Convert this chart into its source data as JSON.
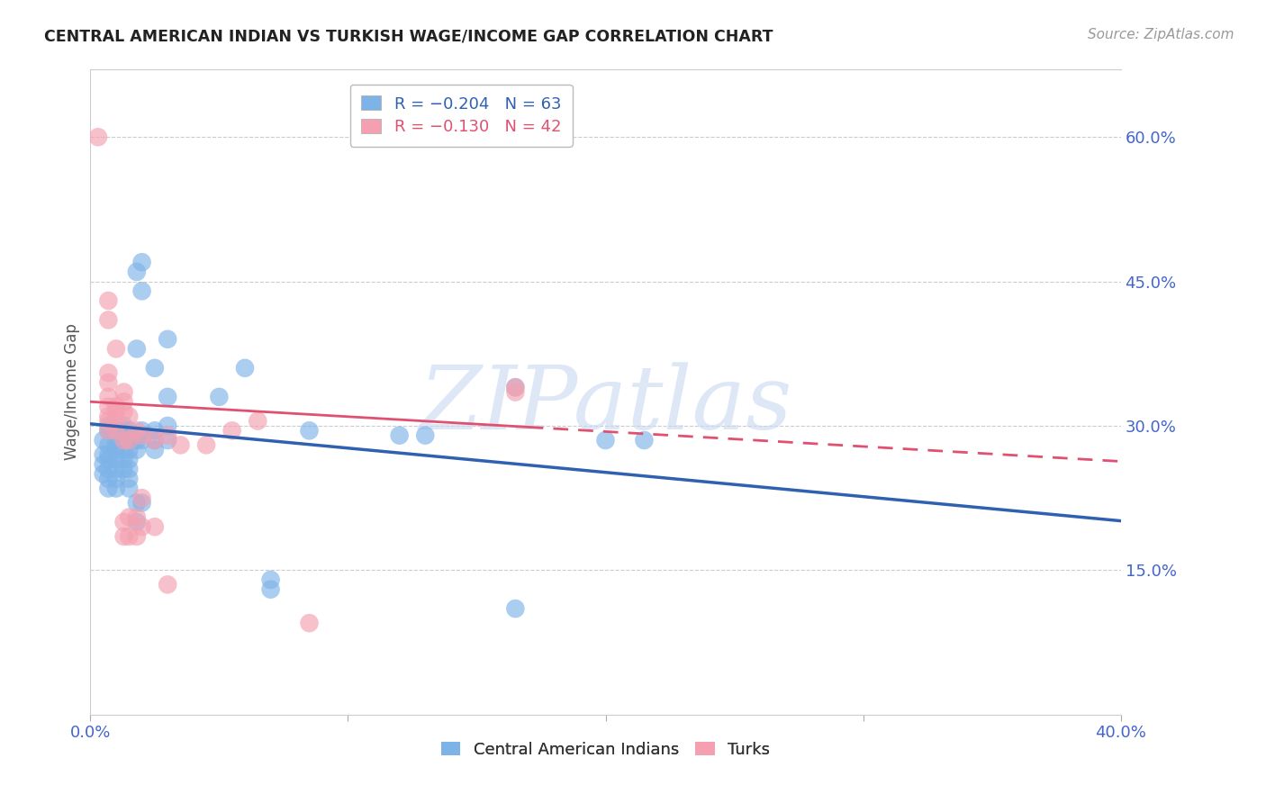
{
  "title": "CENTRAL AMERICAN INDIAN VS TURKISH WAGE/INCOME GAP CORRELATION CHART",
  "source": "Source: ZipAtlas.com",
  "ylabel": "Wage/Income Gap",
  "x_min": 0.0,
  "x_max": 0.4,
  "y_min": 0.0,
  "y_max": 0.67,
  "right_yticks": [
    0.15,
    0.3,
    0.45,
    0.6
  ],
  "right_ytick_labels": [
    "15.0%",
    "30.0%",
    "45.0%",
    "60.0%"
  ],
  "x_ticks": [
    0.0,
    0.1,
    0.2,
    0.3,
    0.4
  ],
  "x_tick_labels": [
    "0.0%",
    "",
    "",
    "",
    "40.0%"
  ],
  "legend_blue": "R = −0.204   N = 63",
  "legend_pink": "R = −0.130   N = 42",
  "blue_color": "#7EB3E8",
  "pink_color": "#F4A0B0",
  "blue_line_color": "#3060B0",
  "pink_line_color": "#E05070",
  "watermark": "ZIPatlas",
  "watermark_color": "#C8D8F0",
  "blue_regression": [
    0.302,
    -0.252
  ],
  "pink_regression": [
    0.325,
    -0.155
  ],
  "blue_scatter": [
    [
      0.005,
      0.27
    ],
    [
      0.005,
      0.26
    ],
    [
      0.005,
      0.25
    ],
    [
      0.005,
      0.285
    ],
    [
      0.007,
      0.3
    ],
    [
      0.007,
      0.295
    ],
    [
      0.007,
      0.28
    ],
    [
      0.007,
      0.27
    ],
    [
      0.007,
      0.265
    ],
    [
      0.007,
      0.255
    ],
    [
      0.007,
      0.245
    ],
    [
      0.007,
      0.235
    ],
    [
      0.01,
      0.295
    ],
    [
      0.01,
      0.285
    ],
    [
      0.01,
      0.28
    ],
    [
      0.01,
      0.275
    ],
    [
      0.01,
      0.265
    ],
    [
      0.01,
      0.255
    ],
    [
      0.01,
      0.245
    ],
    [
      0.01,
      0.235
    ],
    [
      0.013,
      0.3
    ],
    [
      0.013,
      0.295
    ],
    [
      0.013,
      0.285
    ],
    [
      0.013,
      0.275
    ],
    [
      0.013,
      0.265
    ],
    [
      0.013,
      0.255
    ],
    [
      0.015,
      0.295
    ],
    [
      0.015,
      0.285
    ],
    [
      0.015,
      0.275
    ],
    [
      0.015,
      0.265
    ],
    [
      0.015,
      0.255
    ],
    [
      0.015,
      0.245
    ],
    [
      0.015,
      0.235
    ],
    [
      0.018,
      0.46
    ],
    [
      0.018,
      0.38
    ],
    [
      0.018,
      0.285
    ],
    [
      0.018,
      0.275
    ],
    [
      0.018,
      0.22
    ],
    [
      0.018,
      0.2
    ],
    [
      0.02,
      0.47
    ],
    [
      0.02,
      0.44
    ],
    [
      0.02,
      0.295
    ],
    [
      0.02,
      0.285
    ],
    [
      0.02,
      0.22
    ],
    [
      0.025,
      0.36
    ],
    [
      0.025,
      0.295
    ],
    [
      0.025,
      0.285
    ],
    [
      0.025,
      0.275
    ],
    [
      0.03,
      0.39
    ],
    [
      0.03,
      0.33
    ],
    [
      0.03,
      0.3
    ],
    [
      0.03,
      0.285
    ],
    [
      0.05,
      0.33
    ],
    [
      0.06,
      0.36
    ],
    [
      0.07,
      0.13
    ],
    [
      0.07,
      0.14
    ],
    [
      0.085,
      0.295
    ],
    [
      0.12,
      0.29
    ],
    [
      0.13,
      0.29
    ],
    [
      0.165,
      0.34
    ],
    [
      0.165,
      0.11
    ],
    [
      0.2,
      0.285
    ],
    [
      0.215,
      0.285
    ]
  ],
  "pink_scatter": [
    [
      0.003,
      0.6
    ],
    [
      0.007,
      0.43
    ],
    [
      0.007,
      0.41
    ],
    [
      0.007,
      0.355
    ],
    [
      0.007,
      0.345
    ],
    [
      0.007,
      0.33
    ],
    [
      0.007,
      0.32
    ],
    [
      0.007,
      0.31
    ],
    [
      0.007,
      0.305
    ],
    [
      0.007,
      0.295
    ],
    [
      0.01,
      0.38
    ],
    [
      0.01,
      0.32
    ],
    [
      0.01,
      0.315
    ],
    [
      0.01,
      0.305
    ],
    [
      0.01,
      0.295
    ],
    [
      0.013,
      0.335
    ],
    [
      0.013,
      0.325
    ],
    [
      0.013,
      0.315
    ],
    [
      0.013,
      0.285
    ],
    [
      0.013,
      0.2
    ],
    [
      0.013,
      0.185
    ],
    [
      0.015,
      0.31
    ],
    [
      0.015,
      0.285
    ],
    [
      0.015,
      0.205
    ],
    [
      0.015,
      0.185
    ],
    [
      0.018,
      0.295
    ],
    [
      0.018,
      0.205
    ],
    [
      0.018,
      0.185
    ],
    [
      0.02,
      0.29
    ],
    [
      0.02,
      0.225
    ],
    [
      0.02,
      0.195
    ],
    [
      0.025,
      0.285
    ],
    [
      0.025,
      0.195
    ],
    [
      0.03,
      0.29
    ],
    [
      0.03,
      0.135
    ],
    [
      0.035,
      0.28
    ],
    [
      0.045,
      0.28
    ],
    [
      0.055,
      0.295
    ],
    [
      0.065,
      0.305
    ],
    [
      0.085,
      0.095
    ],
    [
      0.165,
      0.34
    ],
    [
      0.165,
      0.335
    ]
  ]
}
